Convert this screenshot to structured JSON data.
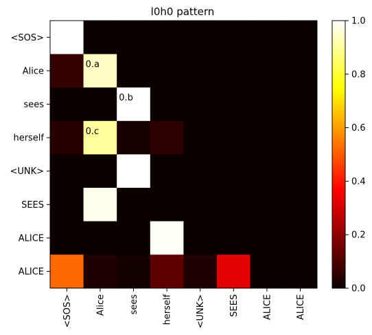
{
  "chart_data": {
    "type": "heatmap",
    "title": "l0h0 pattern",
    "xlabel": "",
    "ylabel": "",
    "x_tick_labels": [
      "<SOS>",
      "Alice",
      "sees",
      "herself",
      "<UNK>",
      "SEES",
      "ALICE",
      "ALICE"
    ],
    "y_tick_labels": [
      "<SOS>",
      "Alice",
      "sees",
      "herself",
      "<UNK>",
      "SEES",
      "ALICE",
      "ALICE"
    ],
    "values": [
      [
        1.0,
        0.0,
        0.0,
        0.0,
        0.0,
        0.0,
        0.0,
        0.0
      ],
      [
        0.06,
        0.94,
        0.0,
        0.0,
        0.0,
        0.0,
        0.0,
        0.0
      ],
      [
        0.0,
        0.0,
        1.0,
        0.0,
        0.0,
        0.0,
        0.0,
        0.0
      ],
      [
        0.04,
        0.9,
        0.02,
        0.05,
        0.0,
        0.0,
        0.0,
        0.0
      ],
      [
        0.0,
        0.0,
        1.0,
        0.0,
        0.0,
        0.0,
        0.0,
        0.0
      ],
      [
        0.0,
        0.98,
        0.0,
        0.0,
        0.0,
        0.0,
        0.0,
        0.0
      ],
      [
        0.0,
        0.0,
        0.0,
        0.99,
        0.0,
        0.0,
        0.0,
        0.0
      ],
      [
        0.52,
        0.03,
        0.01,
        0.12,
        0.03,
        0.31,
        0.0,
        0.0
      ]
    ],
    "annotations": [
      {
        "row": 1,
        "col": 1,
        "text": "0.a"
      },
      {
        "row": 2,
        "col": 2,
        "text": "0.b"
      },
      {
        "row": 3,
        "col": 1,
        "text": "0.c"
      }
    ],
    "colormap": "hot",
    "colorbar": {
      "range": [
        0.0,
        1.0
      ],
      "ticks": [
        0.0,
        0.2,
        0.4,
        0.6,
        0.8,
        1.0
      ],
      "tick_labels": [
        "0.0",
        "0.2",
        "0.4",
        "0.6",
        "0.8",
        "1.0"
      ]
    }
  }
}
